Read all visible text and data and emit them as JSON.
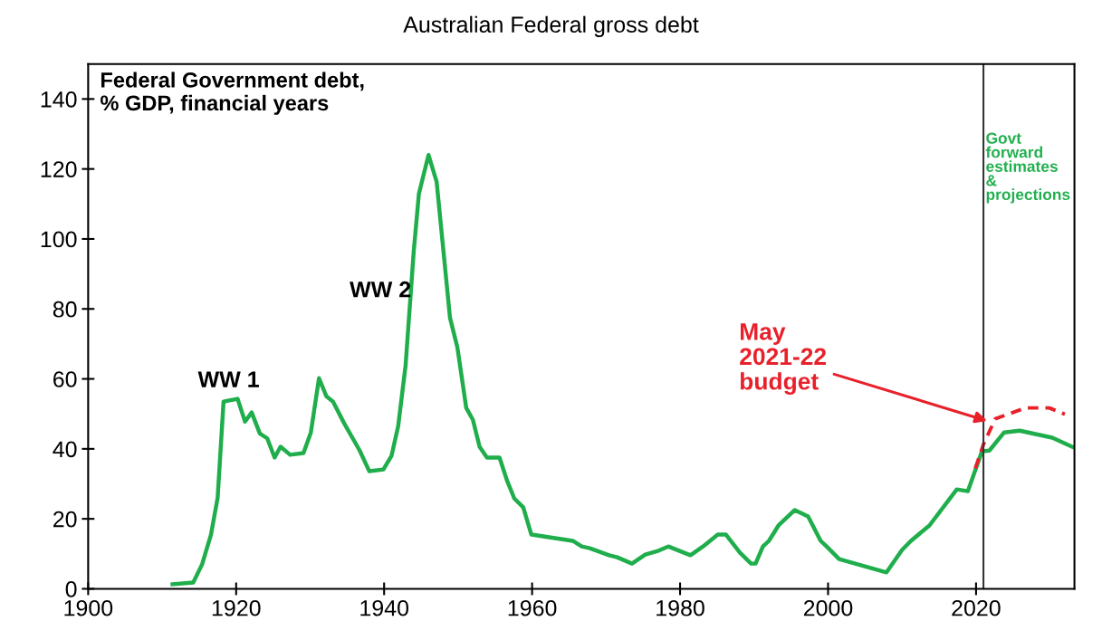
{
  "chart_data": {
    "type": "line",
    "title": "Australian Federal gross debt",
    "series": [
      {
        "color": "#1fae4b",
        "line_style": "solid",
        "x": [
          1911.4,
          1914.2,
          1915.4,
          1916.6,
          1917.5,
          1918.3,
          1920.2,
          1921.2,
          1922.1,
          1923.2,
          1924.2,
          1925.2,
          1926,
          1927.3,
          1929.1,
          1930.1,
          1931.2,
          1932.2,
          1933.1,
          1934.6,
          1936.7,
          1938,
          1939.9,
          1941,
          1941.9,
          1942.9,
          1944,
          1944.7,
          1946,
          1947.1,
          1948.9,
          1949.9,
          1951.1,
          1952,
          1952.9,
          1953.9,
          1955.6,
          1956.6,
          1957.6,
          1958.8,
          1959.9,
          1965.5,
          1966.7,
          1967.8,
          1970.4,
          1971.5,
          1973.5,
          1975.3,
          1977.1,
          1978.4,
          1981.4,
          1983.1,
          1985.1,
          1986.2,
          1988.1,
          1989.6,
          1990.2,
          1991.2,
          1992,
          1993.3,
          1995.5,
          1996.6,
          1997.3,
          1999,
          1999.8,
          2001.5,
          2007.9,
          2010,
          2011.2,
          2013.7,
          2017.4,
          2018.9,
          2020.8,
          2021.8,
          2023.8,
          2025.9,
          2030.3,
          2033
        ],
        "values": [
          1.3,
          1.8,
          7,
          15.5,
          26,
          53.5,
          54.3,
          47.8,
          50.4,
          44.4,
          43,
          37.5,
          40.6,
          38.3,
          38.8,
          44.7,
          60.2,
          55,
          53.5,
          47.3,
          39.5,
          33.6,
          34.1,
          38,
          46.5,
          63.8,
          96.4,
          112.9,
          124,
          116.3,
          77.5,
          69,
          51.7,
          48.3,
          40.6,
          37.5,
          37.5,
          31,
          25.8,
          23.3,
          15.5,
          13.7,
          12.1,
          11.6,
          9.6,
          9,
          7.2,
          9.8,
          10.9,
          12.1,
          9.6,
          12.1,
          15.5,
          15.5,
          10.3,
          7.2,
          7.2,
          12.1,
          13.7,
          18.1,
          22.5,
          21.4,
          20.7,
          13.7,
          12.1,
          8.5,
          4.7,
          11.1,
          13.7,
          18.1,
          28.4,
          27.9,
          39.3,
          39.5,
          44.7,
          45.2,
          43.2,
          40.6
        ]
      },
      {
        "color": "#e8202a",
        "line_style": "dashed",
        "x": [
          2019.9,
          2021,
          2022.6,
          2026.7,
          2029.9,
          2032
        ],
        "values": [
          34.4,
          41.3,
          48.6,
          51.7,
          51.7,
          49.9
        ]
      }
    ],
    "xlim": [
      1900,
      2033.3
    ],
    "xticks": [
      1900,
      1920,
      1940,
      1960,
      1980,
      2000,
      2020
    ],
    "ylim": [
      0,
      150
    ],
    "yticks": [
      0,
      20,
      40,
      60,
      80,
      100,
      120,
      140
    ],
    "grid": false,
    "legend": false,
    "marker": "none",
    "ref_lines": [
      {
        "axis": "x",
        "value": 2021,
        "label": "Govt\nforward\nestimates\n&\nprojections",
        "color": "#333333"
      }
    ],
    "annotations": [
      "Federal Government debt,\n% GDP, financial years",
      {
        "text": "WW 1",
        "x": 1919,
        "y": 54.3
      },
      {
        "text": "WW 2",
        "x": 1943,
        "y": 80
      },
      {
        "text": "May\n2021-22\nbudget",
        "x": 2021.5,
        "y": 48
      }
    ]
  }
}
